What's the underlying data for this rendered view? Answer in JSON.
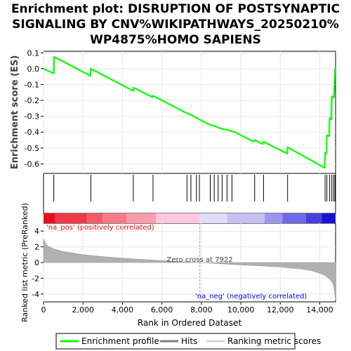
{
  "title_lines": [
    "Enrichment plot: DISRUPTION OF POSTSYNAPTIC",
    "SIGNALING BY CNV%WIKIPATHWAYS_20250210%",
    "WP4875%HOMO SAPIENS"
  ],
  "colors": {
    "enrichment_line": "#00ff00",
    "hits": "#000000",
    "metric_fill": "#b0b0b0",
    "pos_label": "#ff0000",
    "neg_label": "#0000ff",
    "zero_cross_line": "#a0a0a0"
  },
  "chart_data": {
    "type": "line",
    "x_axis": {
      "label": "Rank in Ordered Dataset",
      "ticks": [
        0,
        2000,
        4000,
        6000,
        8000,
        10000,
        12000,
        14000
      ],
      "tick_labels": [
        "0",
        "2,000",
        "4,000",
        "6,000",
        "8,000",
        "10,000",
        "12,000",
        "14,000"
      ],
      "range": [
        0,
        14800
      ]
    },
    "enrichment": {
      "ylabel": "Enrichment score (ES)",
      "ylim": [
        -0.66,
        0.11
      ],
      "ticks": [
        0.1,
        0.0,
        -0.1,
        -0.2,
        -0.3,
        -0.4,
        -0.5,
        -0.6
      ],
      "tick_labels": [
        "0.1",
        "0.0",
        "-0.1",
        "-0.2",
        "-0.3",
        "-0.4",
        "-0.5",
        "-0.6"
      ],
      "series_name": "Enrichment profile",
      "points": [
        [
          0,
          0.0
        ],
        [
          520,
          -0.03
        ],
        [
          540,
          0.075
        ],
        [
          2380,
          -0.045
        ],
        [
          2400,
          0.0
        ],
        [
          4550,
          -0.14
        ],
        [
          4570,
          -0.12
        ],
        [
          5530,
          -0.18
        ],
        [
          5550,
          -0.17
        ],
        [
          7250,
          -0.28
        ],
        [
          7470,
          -0.29
        ],
        [
          7750,
          -0.31
        ],
        [
          7900,
          -0.32
        ],
        [
          8450,
          -0.355
        ],
        [
          8650,
          -0.36
        ],
        [
          8850,
          -0.37
        ],
        [
          9050,
          -0.38
        ],
        [
          9300,
          -0.385
        ],
        [
          9550,
          -0.395
        ],
        [
          9700,
          -0.4
        ],
        [
          10650,
          -0.46
        ],
        [
          10700,
          -0.45
        ],
        [
          11100,
          -0.475
        ],
        [
          11150,
          -0.46
        ],
        [
          12350,
          -0.535
        ],
        [
          12370,
          -0.495
        ],
        [
          14250,
          -0.625
        ],
        [
          14270,
          -0.53
        ],
        [
          14340,
          -0.535
        ],
        [
          14360,
          -0.42
        ],
        [
          14480,
          -0.425
        ],
        [
          14500,
          -0.31
        ],
        [
          14590,
          -0.32
        ],
        [
          14610,
          -0.175
        ],
        [
          14720,
          -0.18
        ],
        [
          14770,
          0.0
        ]
      ]
    },
    "hits": {
      "series_name": "Hits",
      "ranks": [
        520,
        2400,
        4550,
        5550,
        7270,
        7470,
        7750,
        7900,
        8450,
        8650,
        8850,
        9050,
        9300,
        9550,
        10700,
        11150,
        12370,
        14270,
        14360,
        14500,
        14610,
        14700,
        14770
      ]
    },
    "heatmap": {
      "segments": [
        {
          "from": 0,
          "to": 600,
          "color": "#e8101e"
        },
        {
          "from": 600,
          "to": 2200,
          "color": "#f03848"
        },
        {
          "from": 2200,
          "to": 3000,
          "color": "#f45a68"
        },
        {
          "from": 3000,
          "to": 4200,
          "color": "#f87a88"
        },
        {
          "from": 4200,
          "to": 5700,
          "color": "#fb9dab"
        },
        {
          "from": 5700,
          "to": 7900,
          "color": "#fcc6de"
        },
        {
          "from": 7900,
          "to": 9300,
          "color": "#e2dcf6"
        },
        {
          "from": 9300,
          "to": 11200,
          "color": "#c6c2f4"
        },
        {
          "from": 11200,
          "to": 12100,
          "color": "#9a96ee"
        },
        {
          "from": 12100,
          "to": 13300,
          "color": "#6e6ae8"
        },
        {
          "from": 13300,
          "to": 14100,
          "color": "#4440dc"
        },
        {
          "from": 14100,
          "to": 14800,
          "color": "#1a10d0"
        }
      ]
    },
    "metric": {
      "ylabel": "Ranked list metric (PreRanked)",
      "ylim": [
        -5,
        5
      ],
      "ticks": [
        4,
        2,
        0,
        -2,
        -4
      ],
      "tick_labels": [
        "4",
        "2",
        "0",
        "-2",
        "-4"
      ],
      "series_name": "Ranking metric scores",
      "curve": [
        [
          0,
          3.0
        ],
        [
          150,
          2.2
        ],
        [
          500,
          1.75
        ],
        [
          1000,
          1.4
        ],
        [
          2000,
          1.0
        ],
        [
          3000,
          0.75
        ],
        [
          4000,
          0.55
        ],
        [
          5000,
          0.4
        ],
        [
          6000,
          0.25
        ],
        [
          7000,
          0.12
        ],
        [
          7922,
          0.0
        ],
        [
          9000,
          -0.15
        ],
        [
          10000,
          -0.3
        ],
        [
          11000,
          -0.42
        ],
        [
          12000,
          -0.58
        ],
        [
          13000,
          -0.8
        ],
        [
          13600,
          -1.05
        ],
        [
          14000,
          -1.35
        ],
        [
          14300,
          -1.7
        ],
        [
          14500,
          -2.1
        ],
        [
          14650,
          -2.6
        ],
        [
          14720,
          -3.2
        ],
        [
          14770,
          -4.2
        ],
        [
          14800,
          -4.8
        ]
      ],
      "zero_cross_label": "Zero cross at 7922",
      "zero_cross_rank": 7922,
      "pos_label": "'na_pos' (positively correlated)",
      "neg_label": "'na_neg' (negatively correlated)"
    },
    "legend": {
      "placement": "bottom",
      "entries": [
        "Enrichment profile",
        "Hits",
        "Ranking metric scores"
      ]
    }
  }
}
